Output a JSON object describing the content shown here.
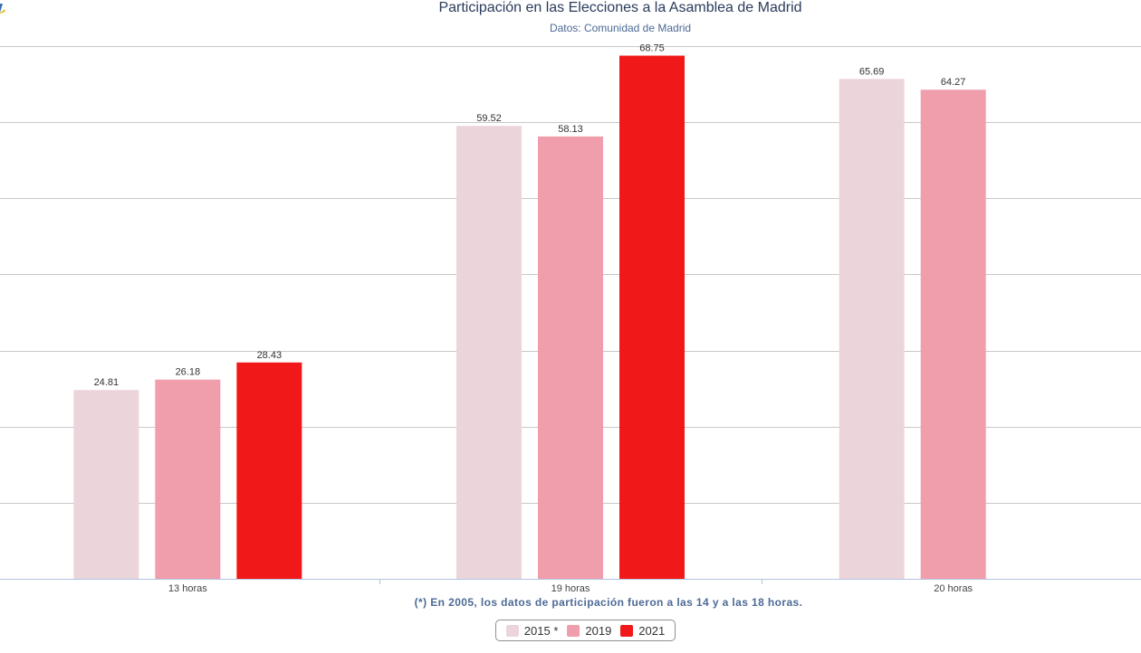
{
  "chart_data": {
    "type": "bar",
    "title": "Participación en las Elecciones a la Asamblea de Madrid",
    "subtitle": "Datos: Comunidad de Madrid",
    "categories": [
      "13 horas",
      "19 horas",
      "20 horas"
    ],
    "series": [
      {
        "name": "2015 *",
        "color": "#ecd5da",
        "values": [
          24.81,
          59.52,
          65.69
        ]
      },
      {
        "name": "2019",
        "color": "#f09eac",
        "values": [
          26.18,
          58.13,
          64.27
        ]
      },
      {
        "name": "2021",
        "color": "#f01818",
        "values": [
          28.43,
          68.75,
          null
        ]
      }
    ],
    "ylim": [
      0,
      70
    ],
    "grid": true,
    "legend_position": "bottom-center",
    "footnote": "(*) En 2005, los datos de participación fueron a las 14 y a las 18 horas."
  }
}
